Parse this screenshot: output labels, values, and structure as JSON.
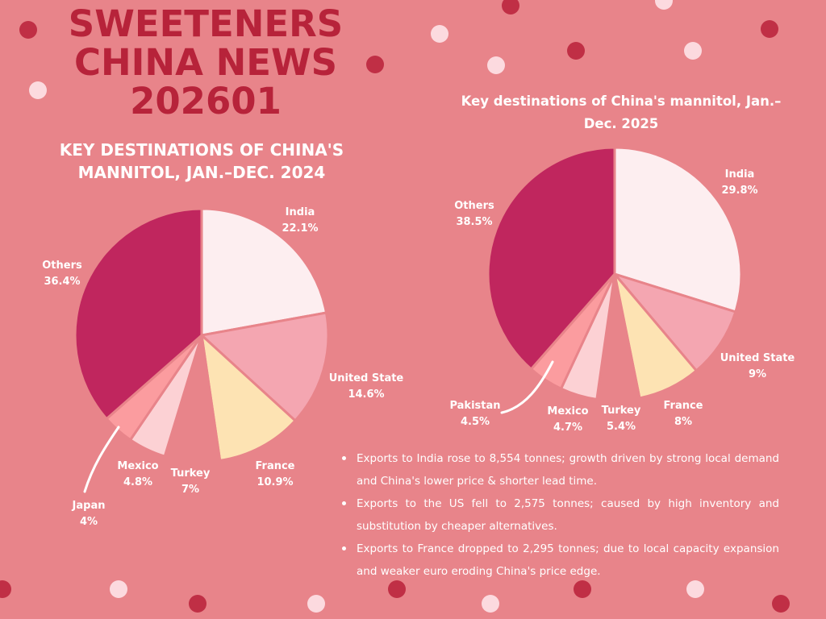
{
  "header": {
    "title_lines": [
      "SWEETENERS",
      "CHINA NEWS",
      "202601"
    ]
  },
  "colors": {
    "background": "#e8848a",
    "title": "#b7233a",
    "dot_dark": "#c02f45",
    "dot_light": "#fcdadf"
  },
  "chart_data": [
    {
      "type": "pie",
      "title": "KEY DESTINATIONS OF CHINA'S MANNITOL, JAN.–DEC. 2024",
      "slices": [
        {
          "label": "India",
          "value": 22.1,
          "display": "22.1%",
          "color": "#fdeef0"
        },
        {
          "label": "United State",
          "value": 14.6,
          "display": "14.6%",
          "color": "#f4a6b1"
        },
        {
          "label": "France",
          "value": 10.9,
          "display": "10.9%",
          "color": "#fde3b3"
        },
        {
          "label": "Turkey",
          "value": 7,
          "display": "7%",
          "color": "#e8848a"
        },
        {
          "label": "Mexico",
          "value": 4.8,
          "display": "4.8%",
          "color": "#fcd1d4"
        },
        {
          "label": "Japan",
          "value": 4,
          "display": "4%",
          "color": "#fb9c9f"
        },
        {
          "label": "Others",
          "value": 36.4,
          "display": "36.4%",
          "color": "#c0265e"
        }
      ]
    },
    {
      "type": "pie",
      "title": "Key destinations of China's mannitol, Jan.–Dec. 2025",
      "slices": [
        {
          "label": "India",
          "value": 29.8,
          "display": "29.8%",
          "color": "#fdeef0"
        },
        {
          "label": "United State",
          "value": 9,
          "display": "9%",
          "color": "#f4a6b1"
        },
        {
          "label": "France",
          "value": 8,
          "display": "8%",
          "color": "#fde3b3"
        },
        {
          "label": "Turkey",
          "value": 5.4,
          "display": "5.4%",
          "color": "#e8848a"
        },
        {
          "label": "Mexico",
          "value": 4.7,
          "display": "4.7%",
          "color": "#fcd1d4"
        },
        {
          "label": "Pakistan",
          "value": 4.5,
          "display": "4.5%",
          "color": "#fb9c9f"
        },
        {
          "label": "Others",
          "value": 38.5,
          "display": "38.5%",
          "color": "#c0265e"
        }
      ]
    }
  ],
  "notes": [
    "Exports to India rose to 8,554 tonnes; growth driven by strong local demand and China's lower price & shorter lead time.",
    "Exports to the US fell to 2,575 tonnes; caused by high inventory and substitution by cheaper alternatives.",
    "Exports to France dropped to 2,295 tonnes; due to local capacity expansion and weaker euro eroding China's price edge."
  ]
}
